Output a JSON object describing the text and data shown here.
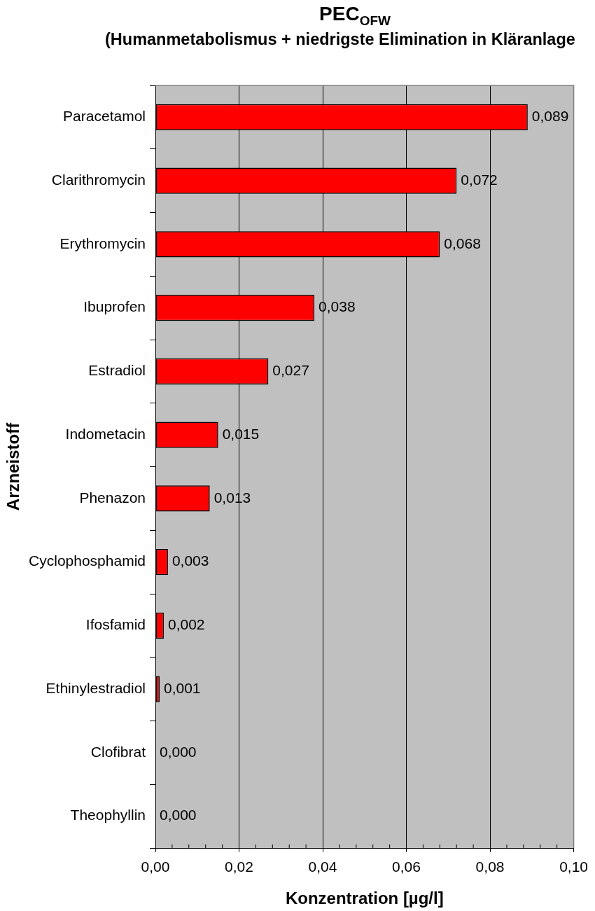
{
  "chart_data": {
    "type": "bar",
    "orientation": "horizontal",
    "title": "PEC$_{OFW}$",
    "subtitle": "(Humanmetabolismus + niedrigste Elimination in Kläranlage",
    "xlabel": "Konzentration [µg/l]",
    "ylabel": "Arzneistoff",
    "categories": [
      "Paracetamol",
      "Clarithromycin",
      "Erythromycin",
      "Ibuprofen",
      "Estradiol",
      "Indometacin",
      "Phenazon",
      "Cyclophosphamid",
      "Ifosfamid",
      "Ethinylestradiol",
      "Clofibrat",
      "Theophyllin"
    ],
    "values": [
      0.089,
      0.072,
      0.068,
      0.038,
      0.027,
      0.015,
      0.013,
      0.003,
      0.002,
      0.001,
      0,
      0
    ],
    "value_labels": [
      "0,089",
      "0,072",
      "0,068",
      "0,038",
      "0,027",
      "0,015",
      "0,013",
      "0,003",
      "0,002",
      "0,001",
      "0,000",
      "0,000"
    ],
    "color": "#ff0000",
    "xlim": [
      0,
      0.1
    ],
    "xticks": [
      {
        "value": 0,
        "label": "0,00"
      },
      {
        "value": 0.004,
        "label": null
      },
      {
        "value": 0.008,
        "label": null
      },
      {
        "value": 0.012,
        "label": null
      },
      {
        "value": 0.016,
        "label": null
      },
      {
        "value": 0.02,
        "label": "0,02"
      },
      {
        "value": 0.024,
        "label": null
      },
      {
        "value": 0.028,
        "label": null
      },
      {
        "value": 0.032,
        "label": null
      },
      {
        "value": 0.036,
        "label": null
      },
      {
        "value": 0.04,
        "label": "0,04"
      },
      {
        "value": 0.044,
        "label": null
      },
      {
        "value": 0.048,
        "label": null
      },
      {
        "value": 0.052,
        "label": null
      },
      {
        "value": 0.056,
        "label": null
      },
      {
        "value": 0.06,
        "label": "0,06"
      },
      {
        "value": 0.064,
        "label": null
      },
      {
        "value": 0.068,
        "label": null
      },
      {
        "value": 0.072,
        "label": null
      },
      {
        "value": 0.076,
        "label": null
      },
      {
        "value": 0.08,
        "label": "0,08"
      },
      {
        "value": 0.084,
        "label": null
      },
      {
        "value": 0.088,
        "label": null
      },
      {
        "value": 0.092,
        "label": null
      },
      {
        "value": 0.096,
        "label": null
      },
      {
        "value": 0.1,
        "label": "0,10"
      }
    ],
    "grid": "x"
  }
}
